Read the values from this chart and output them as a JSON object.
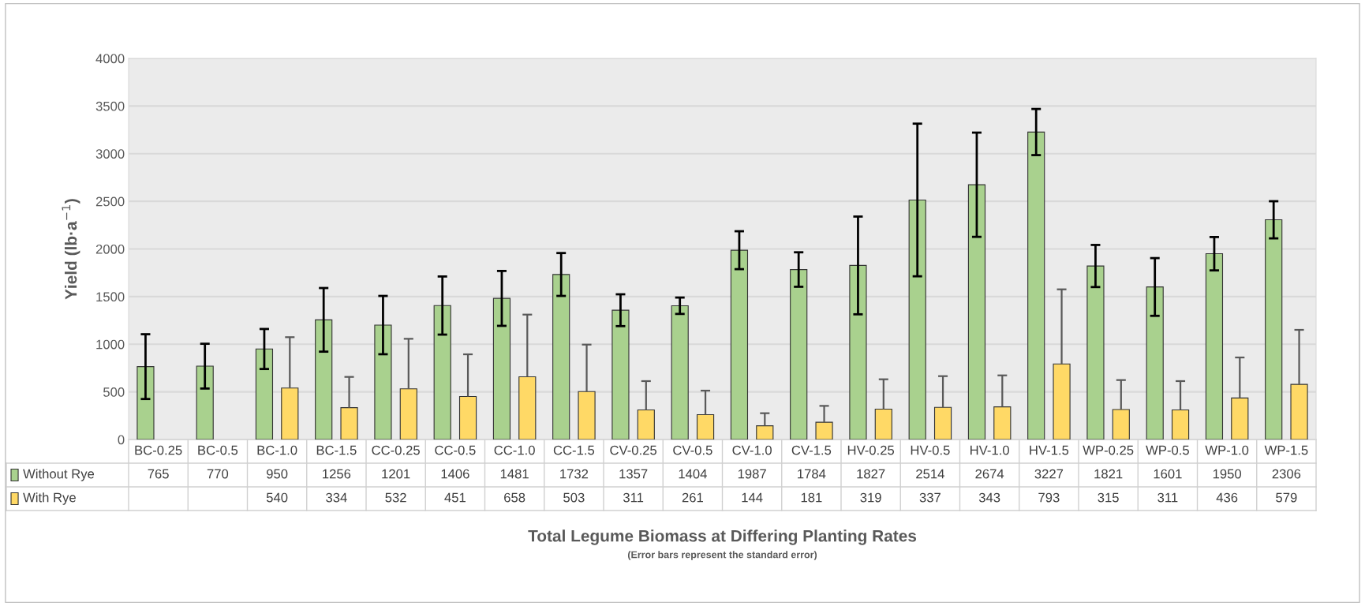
{
  "chart_data": {
    "type": "bar",
    "xlabel": "Total Legume Biomass at Differing Planting Rates",
    "ylabel": "Yield (lb·a$^{−1}$)",
    "annotations": [
      "(Error bars represent the standard error)"
    ],
    "categories": [
      "BC-0.25",
      "BC-0.5",
      "BC-1.0",
      "BC-1.5",
      "CC-0.25",
      "CC-0.5",
      "CC-1.0",
      "CC-1.5",
      "CV-0.25",
      "CV-0.5",
      "CV-1.0",
      "CV-1.5",
      "HV-0.25",
      "HV-0.5",
      "HV-1.0",
      "HV-1.5",
      "WP-0.25",
      "WP-0.5",
      "WP-1.0",
      "WP-1.5"
    ],
    "series": [
      {
        "name": "Without Rye",
        "color": "#a9d18e",
        "values": [
          765,
          770,
          950,
          1256,
          1201,
          1406,
          1481,
          1732,
          1357,
          1404,
          1987,
          1784,
          1827,
          2514,
          2674,
          3227,
          1821,
          1601,
          1950,
          2306
        ],
        "errors": [
          340,
          235,
          210,
          334,
          306,
          305,
          288,
          225,
          167,
          86,
          199,
          181,
          513,
          801,
          547,
          242,
          221,
          303,
          175,
          195
        ]
      },
      {
        "name": "With Rye",
        "color": "#ffd966",
        "values": [
          null,
          null,
          540,
          334,
          532,
          451,
          658,
          503,
          311,
          261,
          144,
          181,
          319,
          337,
          343,
          793,
          315,
          311,
          436,
          579
        ],
        "errors": [
          null,
          null,
          [
            540,
            1074
          ],
          [
            334,
            657
          ],
          [
            532,
            1057
          ],
          [
            451,
            894
          ],
          [
            658,
            1311
          ],
          [
            503,
            996
          ],
          [
            311,
            613
          ],
          [
            261,
            513
          ],
          [
            144,
            276
          ],
          [
            181,
            353
          ],
          [
            319,
            632
          ],
          [
            337,
            665
          ],
          [
            343,
            673
          ],
          [
            793,
            1576
          ],
          [
            315,
            624
          ],
          [
            311,
            613
          ],
          [
            436,
            861
          ],
          [
            579,
            1151
          ]
        ]
      }
    ],
    "ylim": [
      0,
      4000
    ],
    "yticks": [
      0,
      500,
      1000,
      1500,
      2000,
      2500,
      3000,
      3500,
      4000
    ],
    "grid": "y",
    "legend": "bottom",
    "data_labels": true
  }
}
